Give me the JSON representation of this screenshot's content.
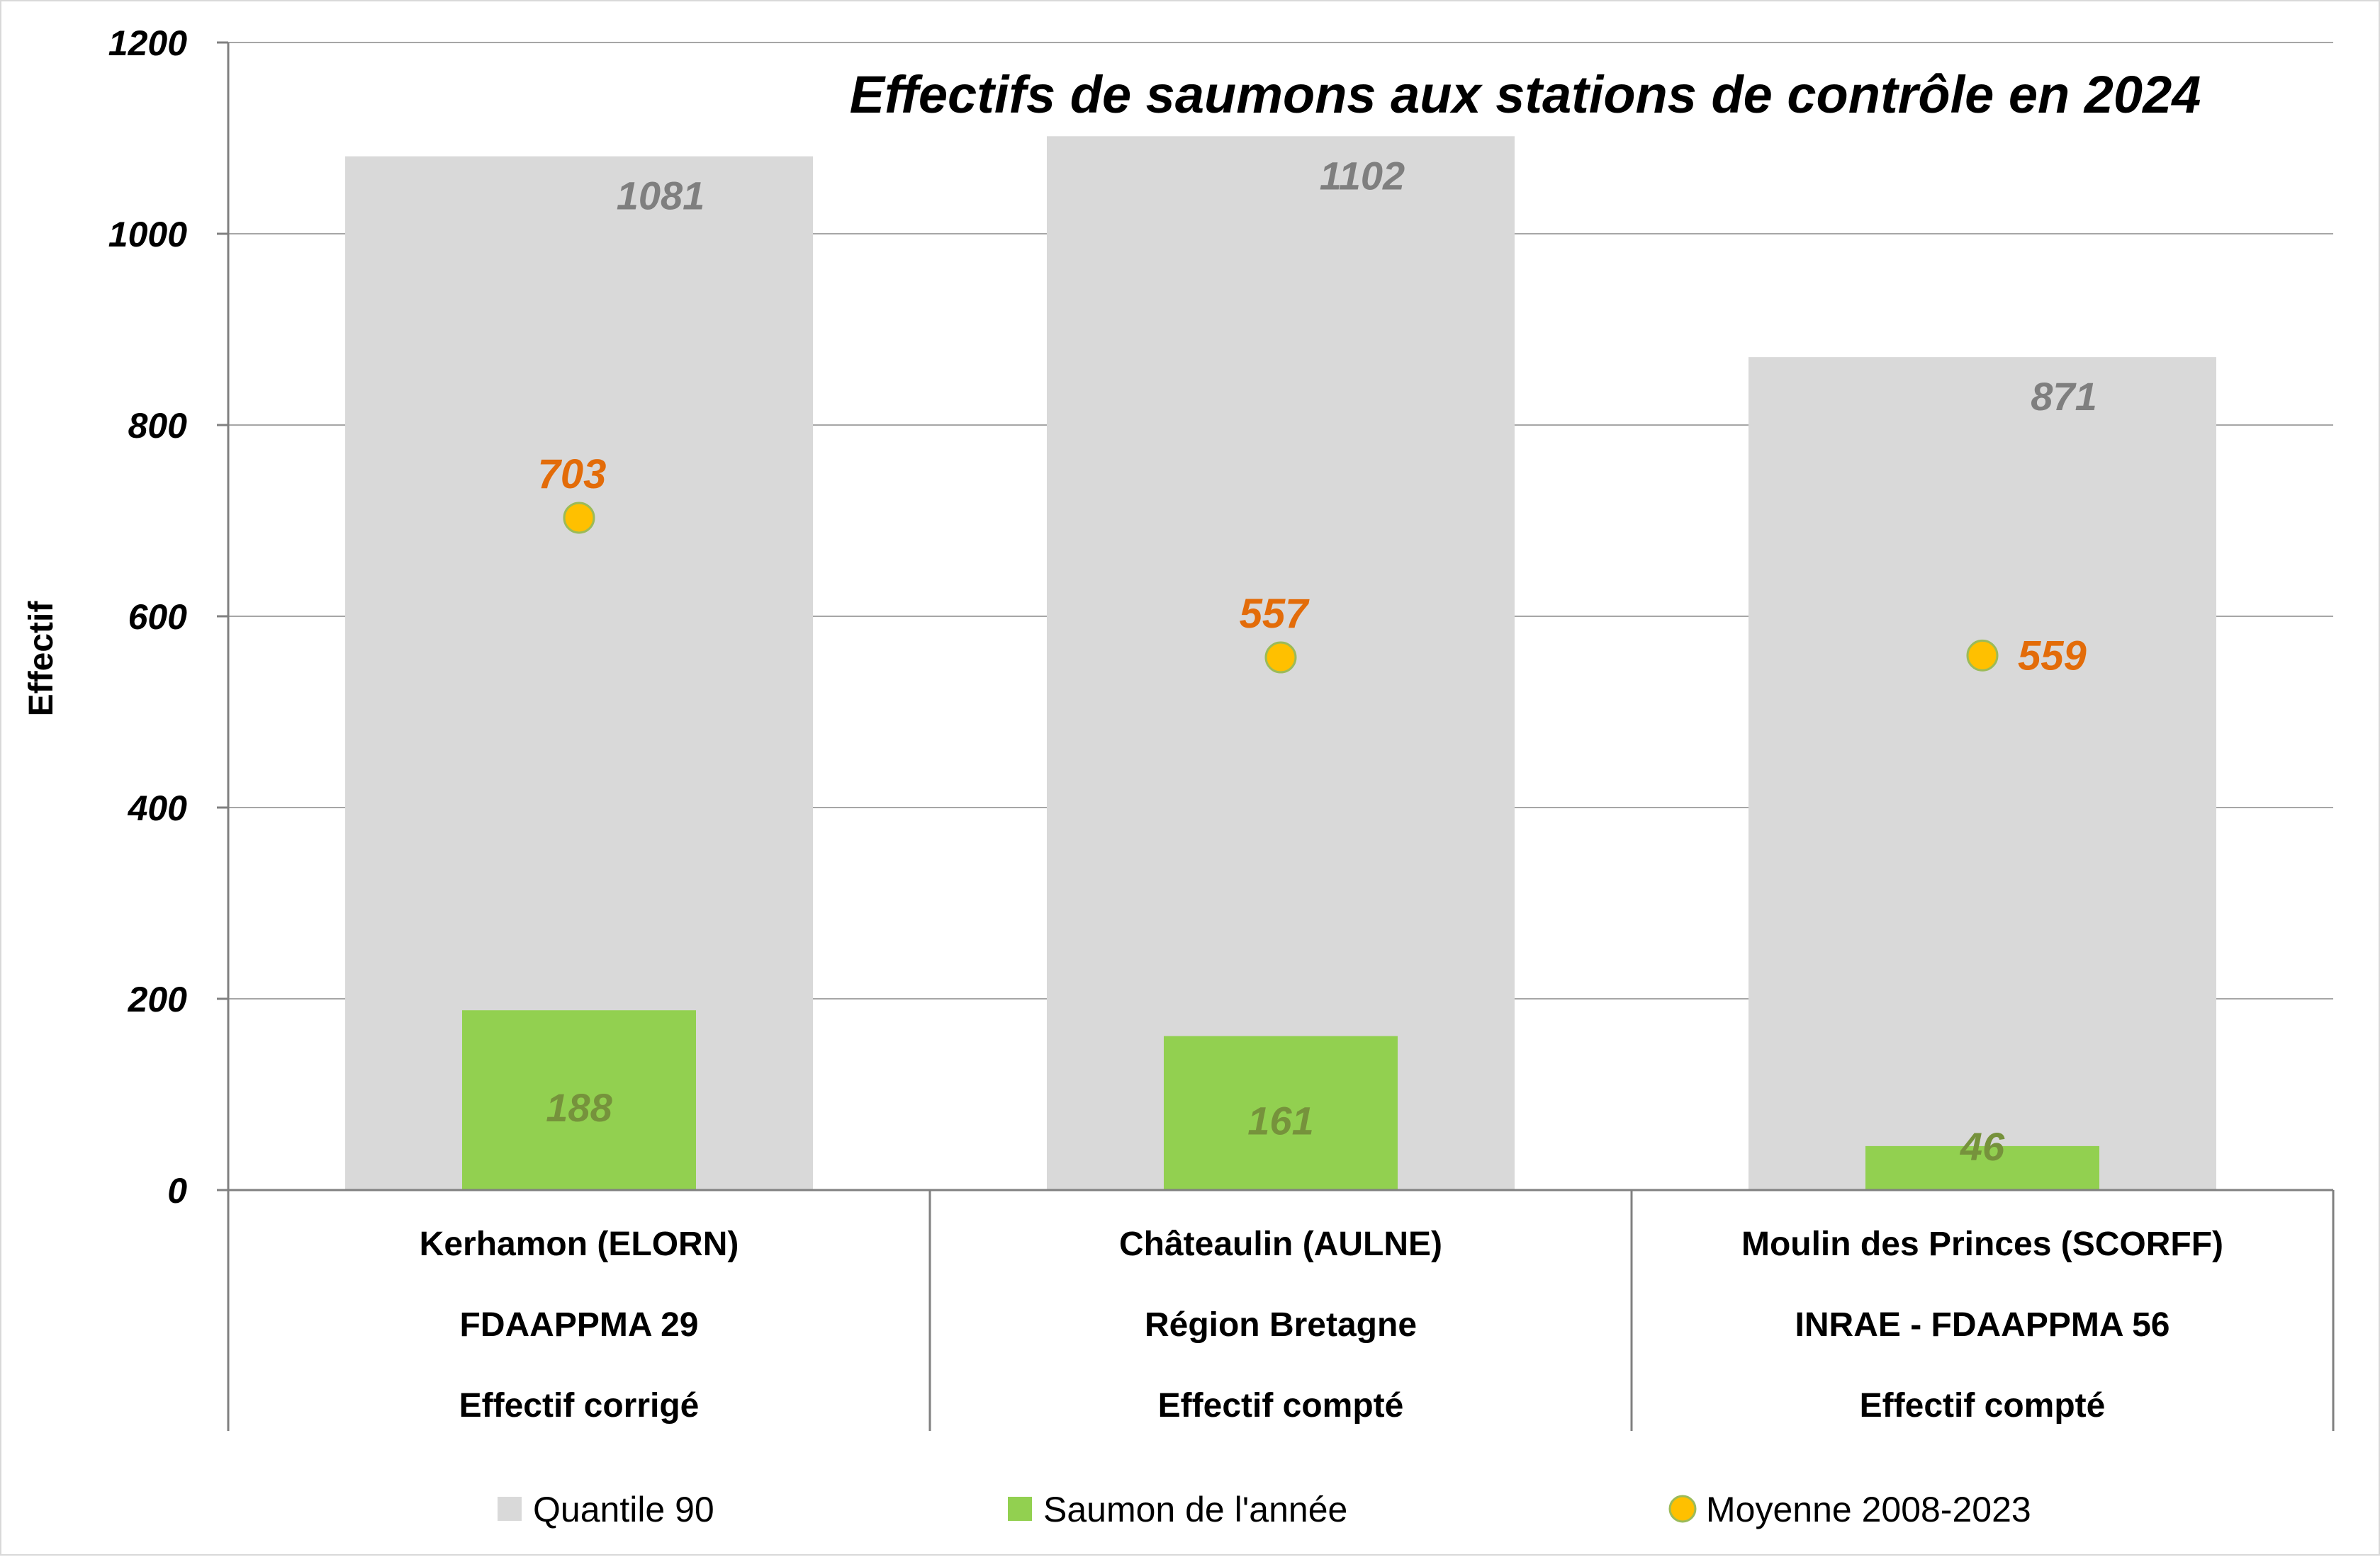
{
  "chart_data": {
    "type": "bar",
    "title": "Effectifs de saumons aux stations de contrôle en 2024",
    "xlabel": "",
    "ylabel": "Effectif",
    "ylim": [
      0,
      1200
    ],
    "yticks": [
      0,
      200,
      400,
      600,
      800,
      1000,
      1200
    ],
    "grid": true,
    "legend_position": "bottom",
    "categories": [
      [
        "Kerhamon (ELORN)",
        "FDAAPPMA 29",
        "Effectif corrigé"
      ],
      [
        "Châteaulin (AULNE)",
        "Région Bretagne",
        "Effectif compté"
      ],
      [
        "Moulin des Princes (SCORFF)",
        "INRAE - FDAAPPMA 56",
        "Effectif compté"
      ]
    ],
    "series": [
      {
        "name": "Quantile 90",
        "type": "bar",
        "color": "#d9d9d9",
        "label_color": "#7f7f7f",
        "values": [
          1081,
          1102,
          871
        ]
      },
      {
        "name": "Saumon de l'année",
        "type": "bar",
        "color": "#92d050",
        "label_color": "#76923c",
        "values": [
          188,
          161,
          46
        ]
      },
      {
        "name": "Moyenne 2008-2023",
        "type": "marker",
        "color": "#ffc000",
        "label_color": "#e36c09",
        "values": [
          703,
          557,
          559
        ]
      }
    ]
  }
}
